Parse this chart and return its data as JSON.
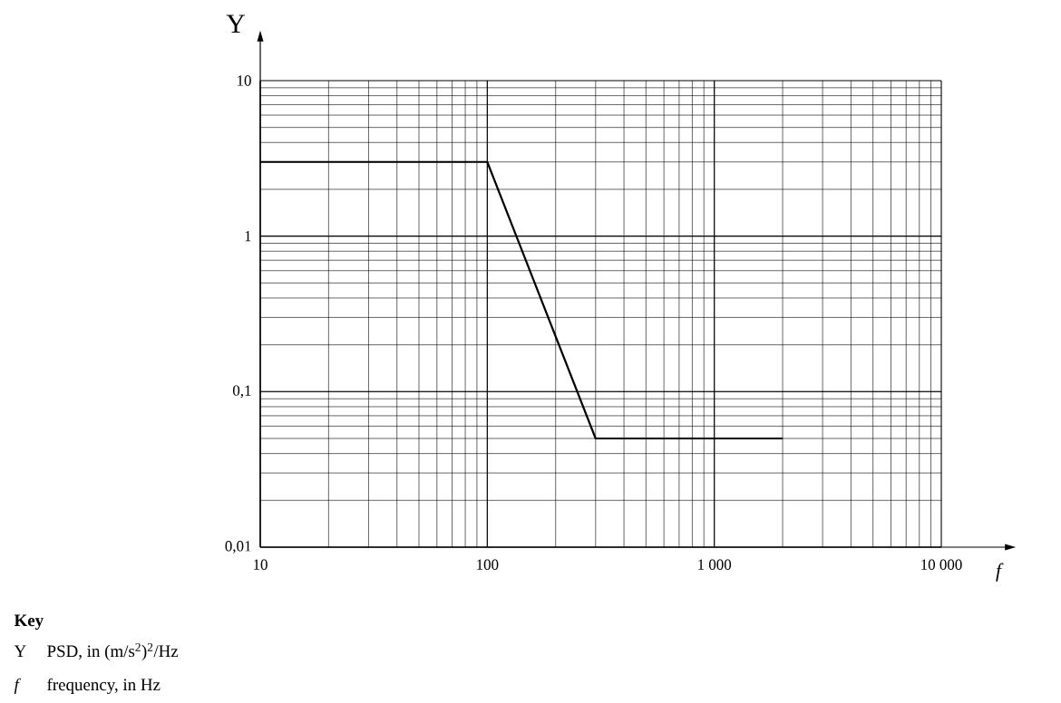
{
  "chart_data": {
    "type": "line",
    "xlabel": "f",
    "ylabel": "Y",
    "x": [
      10,
      100,
      300,
      2000
    ],
    "series": [
      {
        "color": "#000000",
        "values": [
          3,
          3,
          0.05,
          0.05
        ]
      }
    ],
    "xlim": [
      10,
      10000
    ],
    "ylim": [
      0.01,
      10
    ],
    "xticks": [
      10,
      100,
      {
        "value": 1000,
        "label": "1 000"
      },
      {
        "value": 10000,
        "label": "10 000"
      }
    ],
    "yticks": [
      {
        "value": 0.01,
        "label": "0,01"
      },
      {
        "value": 0.1,
        "label": "0,1"
      },
      1,
      10
    ],
    "log": "xy",
    "grid": true,
    "legend": false,
    "marker": "none",
    "line_style": "solid",
    "annotations": [
      "**Key**",
      "Y",
      "PSD, in (m/s$^{2}$)$^{2}$/Hz",
      "f",
      "frequency, in Hz"
    ]
  }
}
